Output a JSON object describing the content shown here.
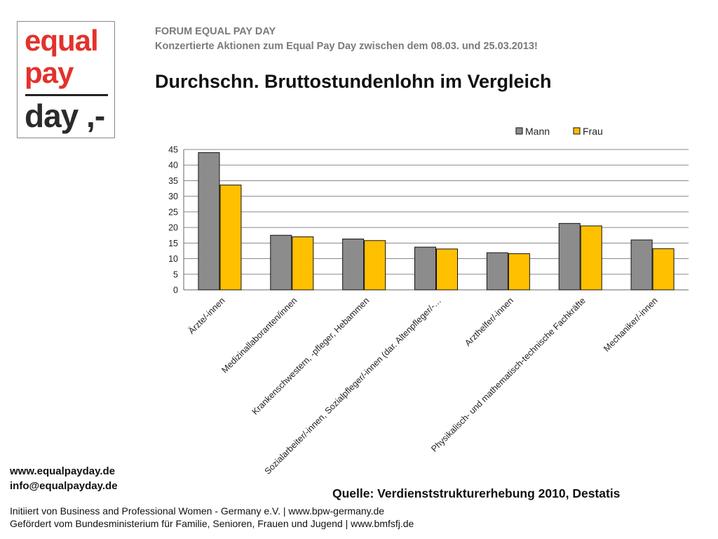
{
  "logo": {
    "line1": "equal",
    "line2": "pay",
    "line3": "day ,-"
  },
  "header": {
    "org": "FORUM EQUAL PAY DAY",
    "subtitle": "Konzertierte Aktionen zum Equal Pay Day zwischen dem 08.03. und 25.03.2013!",
    "title": "Durchschn. Bruttostundenlohn im Vergleich"
  },
  "chart_data": {
    "type": "bar",
    "title": "",
    "xlabel": "",
    "ylabel": "",
    "categories": [
      "Ärzte/-innen",
      "Medizinallaboranten/innen",
      "Krankenschwestern, -pfleger, Hebammen",
      "Sozialarbeiter/-innen, Sozialpfleger/-innen (dar. Altenpfleger/-…",
      "Arzthelfer/-innen",
      "Physikalisch- und mathematisch-technische Fachkräfte",
      "Mechaniker/-innen"
    ],
    "series": [
      {
        "name": "Mann",
        "color": "#8c8c8c",
        "values": [
          44.0,
          17.5,
          16.3,
          13.7,
          11.9,
          21.3,
          16.0
        ]
      },
      {
        "name": "Frau",
        "color": "#ffc000",
        "values": [
          33.6,
          17.0,
          15.8,
          13.1,
          11.6,
          20.5,
          13.2
        ]
      }
    ],
    "ylim": [
      0,
      45
    ],
    "yticks": [
      "0",
      "5",
      "10",
      "15",
      "20",
      "25",
      "30",
      "35",
      "40",
      "45"
    ],
    "grid": true,
    "legend_position": "top-right"
  },
  "footer": {
    "web": "www.equalpayday.de",
    "mail": "info@equalpayday.de",
    "source": "Quelle: Verdienststrukturerhebung 2010, Destatis",
    "line1": "Initiiert von Business and Professional Women - Germany e.V. |  www.bpw-germany.de",
    "line2": "Gefördert vom Bundesministerium für Familie, Senioren, Frauen und Jugend  |  www.bmfsfj.de"
  }
}
